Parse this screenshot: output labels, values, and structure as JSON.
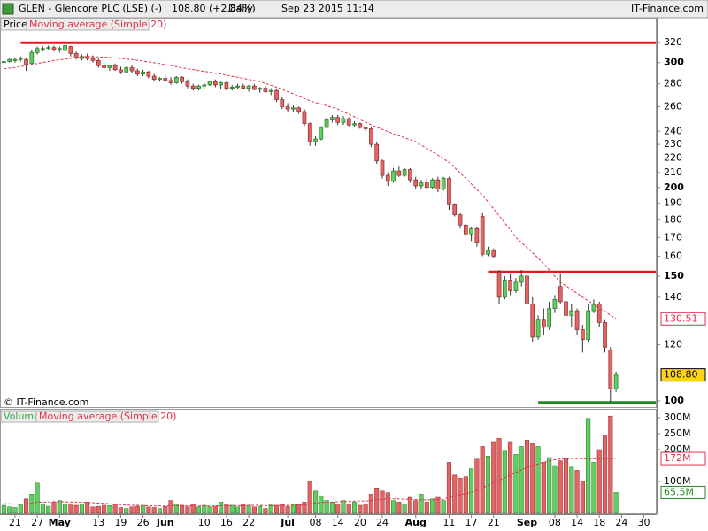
{
  "chart_data": {
    "type": "candlestick",
    "header": {
      "symbol": "GLEN - Glencore PLC (LSE) (-)",
      "quote": "108.80 (+2.84%)",
      "period": "Daily",
      "timestamp": "Sep 23 2015 11:14",
      "brand": "IT-Finance.com"
    },
    "copyright": "© IT-Finance.com",
    "categories": [
      null,
      null,
      "21",
      null,
      null,
      null,
      "27",
      null,
      null,
      null,
      "May",
      null,
      null,
      null,
      null,
      null,
      null,
      "13",
      null,
      null,
      null,
      "19",
      null,
      null,
      null,
      "26",
      null,
      null,
      null,
      "Jun",
      null,
      null,
      null,
      null,
      null,
      null,
      "10",
      null,
      null,
      null,
      "16",
      null,
      null,
      null,
      "22",
      null,
      null,
      null,
      null,
      null,
      null,
      "Jul",
      null,
      null,
      null,
      null,
      "08",
      null,
      null,
      null,
      "14",
      null,
      null,
      null,
      "20",
      null,
      null,
      null,
      "24",
      null,
      null,
      null,
      null,
      null,
      "Aug",
      null,
      null,
      null,
      null,
      null,
      "11",
      null,
      null,
      null,
      "17",
      null,
      null,
      null,
      "21",
      null,
      null,
      null,
      null,
      null,
      "Sep",
      null,
      null,
      null,
      null,
      "08",
      null,
      null,
      null,
      "14",
      null,
      null,
      null,
      "18",
      null,
      null,
      null,
      "24",
      null,
      null,
      null,
      "30"
    ],
    "price_panel": {
      "name": "Price",
      "up_color": "#5fcf5f",
      "down_color": "#e36464",
      "log_scale": true,
      "ylim": [
        98,
        347
      ],
      "yticks": [
        100,
        120,
        140,
        150,
        160,
        170,
        180,
        190,
        200,
        210,
        220,
        230,
        240,
        260,
        280,
        300,
        320
      ],
      "ohlc": [
        [
          300,
          302,
          298,
          301
        ],
        [
          301,
          304,
          300,
          303
        ],
        [
          302,
          305,
          300,
          303
        ],
        [
          303,
          306,
          301,
          304
        ],
        [
          303,
          305,
          292,
          298
        ],
        [
          299,
          312,
          298,
          310
        ],
        [
          310,
          316,
          308,
          314
        ],
        [
          313,
          316,
          311,
          314
        ],
        [
          314,
          317,
          312,
          315
        ],
        [
          315,
          317,
          311,
          313
        ],
        [
          313,
          316,
          310,
          314
        ],
        [
          312,
          320,
          311,
          317
        ],
        [
          316,
          317,
          306,
          309
        ],
        [
          309,
          311,
          303,
          305
        ],
        [
          304,
          308,
          302,
          306
        ],
        [
          306,
          309,
          302,
          304
        ],
        [
          304,
          307,
          300,
          302
        ],
        [
          302,
          304,
          295,
          297
        ],
        [
          297,
          300,
          293,
          295
        ],
        [
          295,
          298,
          292,
          297
        ],
        [
          297,
          299,
          292,
          293
        ],
        [
          293,
          296,
          289,
          291
        ],
        [
          291,
          296,
          290,
          295
        ],
        [
          295,
          297,
          290,
          292
        ],
        [
          292,
          294,
          287,
          289
        ],
        [
          289,
          293,
          287,
          291
        ],
        [
          291,
          292,
          285,
          287
        ],
        [
          287,
          289,
          282,
          284
        ],
        [
          284,
          286,
          282,
          285
        ],
        [
          285,
          288,
          282,
          283
        ],
        [
          283,
          286,
          279,
          281
        ],
        [
          281,
          287,
          280,
          286
        ],
        [
          286,
          287,
          280,
          282
        ],
        [
          282,
          284,
          276,
          278
        ],
        [
          278,
          280,
          274,
          276
        ],
        [
          276,
          279,
          274,
          278
        ],
        [
          278,
          281,
          276,
          279
        ],
        [
          279,
          283,
          278,
          282
        ],
        [
          282,
          284,
          277,
          279
        ],
        [
          279,
          282,
          275,
          281
        ],
        [
          281,
          282,
          274,
          276
        ],
        [
          276,
          279,
          274,
          277
        ],
        [
          277,
          280,
          275,
          278
        ],
        [
          278,
          280,
          275,
          276
        ],
        [
          276,
          279,
          273,
          278
        ],
        [
          278,
          280,
          274,
          275
        ],
        [
          275,
          277,
          272,
          276
        ],
        [
          276,
          278,
          272,
          273
        ],
        [
          273,
          276,
          270,
          274
        ],
        [
          274,
          275,
          264,
          266
        ],
        [
          266,
          268,
          258,
          260
        ],
        [
          260,
          263,
          256,
          258
        ],
        [
          258,
          261,
          255,
          259
        ],
        [
          259,
          260,
          254,
          256
        ],
        [
          256,
          258,
          244,
          246
        ],
        [
          246,
          247,
          229,
          232
        ],
        [
          232,
          236,
          229,
          234
        ],
        [
          234,
          244,
          233,
          243
        ],
        [
          243,
          251,
          242,
          249
        ],
        [
          249,
          253,
          247,
          251
        ],
        [
          251,
          253,
          245,
          247
        ],
        [
          247,
          252,
          245,
          250
        ],
        [
          250,
          251,
          244,
          245
        ],
        [
          245,
          248,
          243,
          246
        ],
        [
          246,
          247,
          242,
          243
        ],
        [
          243,
          244,
          240,
          242
        ],
        [
          242,
          243,
          228,
          230
        ],
        [
          230,
          232,
          216,
          218
        ],
        [
          218,
          219,
          206,
          208
        ],
        [
          208,
          210,
          201,
          204
        ],
        [
          204,
          213,
          203,
          211
        ],
        [
          211,
          214,
          207,
          208
        ],
        [
          208,
          213,
          207,
          212
        ],
        [
          212,
          213,
          203,
          205
        ],
        [
          205,
          207,
          199,
          201
        ],
        [
          201,
          205,
          199,
          203
        ],
        [
          203,
          206,
          199,
          200
        ],
        [
          200,
          206,
          199,
          205
        ],
        [
          205,
          207,
          197,
          199
        ],
        [
          199,
          207,
          198,
          206
        ],
        [
          206,
          207,
          186,
          189
        ],
        [
          189,
          190,
          182,
          183
        ],
        [
          183,
          184,
          175,
          177
        ],
        [
          177,
          178,
          170,
          172
        ],
        [
          172,
          176,
          168,
          175
        ],
        [
          175,
          176,
          165,
          167
        ],
        [
          182,
          184,
          160,
          161
        ],
        [
          161,
          165,
          160,
          163
        ],
        [
          163,
          164,
          159,
          160
        ],
        [
          152,
          153,
          137,
          140
        ],
        [
          140,
          150,
          139,
          148
        ],
        [
          148,
          151,
          141,
          143
        ],
        [
          143,
          149,
          142,
          147
        ],
        [
          147,
          153,
          145,
          150
        ],
        [
          150,
          151,
          135,
          137
        ],
        [
          137,
          140,
          121,
          123
        ],
        [
          123,
          132,
          122,
          130
        ],
        [
          130,
          135,
          124,
          127
        ],
        [
          127,
          138,
          126,
          135
        ],
        [
          135,
          141,
          133,
          139
        ],
        [
          145,
          151,
          137,
          138
        ],
        [
          138,
          141,
          130,
          132
        ],
        [
          132,
          137,
          127,
          134
        ],
        [
          134,
          135,
          124,
          126
        ],
        [
          126,
          128,
          117,
          122
        ],
        [
          122,
          137,
          121,
          134
        ],
        [
          134,
          139,
          133,
          137
        ],
        [
          137,
          138,
          127,
          129
        ],
        [
          129,
          130,
          117,
          119
        ],
        [
          118,
          119,
          99.5,
          104
        ],
        [
          104,
          110,
          103,
          108.8
        ],
        null,
        null,
        null,
        null,
        null
      ],
      "ma": {
        "name": "Moving average (Simple 20)",
        "color": "#e0304a",
        "values": [
          294,
          294.7,
          295.3,
          296,
          297,
          298,
          299,
          300,
          301,
          302,
          302.7,
          303.3,
          304,
          304.7,
          305.3,
          306,
          305.8,
          305.5,
          305.3,
          305,
          304.5,
          304,
          303.5,
          303,
          302.2,
          301.4,
          300.6,
          299.8,
          299,
          298,
          297,
          296,
          295,
          294,
          293.2,
          292.3,
          291.5,
          290.7,
          289.8,
          289,
          288,
          287,
          286,
          285,
          284,
          283,
          282,
          280.3,
          278.7,
          277,
          275,
          273,
          271,
          269,
          267,
          265,
          263.6,
          262.2,
          260.8,
          259.4,
          258,
          255.8,
          253.7,
          251.5,
          249.3,
          247.2,
          245,
          243.3,
          241.5,
          239.8,
          238,
          236.5,
          235,
          233.5,
          232,
          229.5,
          227,
          224.5,
          222,
          219.5,
          217,
          213.3,
          209.7,
          206,
          202.3,
          198.7,
          195,
          190.8,
          186.7,
          182.5,
          178.3,
          174.2,
          170,
          167.3,
          164.5,
          161.8,
          159,
          156,
          153,
          150,
          147,
          145.3,
          143.5,
          141.8,
          140,
          138.4,
          136.8,
          135.2,
          133.7,
          132.1,
          130.51,
          null,
          null,
          null,
          null,
          null
        ]
      },
      "markers": [
        {
          "value": 130.51,
          "label": "130.51",
          "color": "#e0304a",
          "background": "#ffffff"
        },
        {
          "value": 108.8,
          "label": "108.80",
          "color": "#000000",
          "background": "#ffd21f"
        }
      ],
      "lines": [
        {
          "value": 320,
          "from": 3,
          "color": "#e8191c"
        },
        {
          "value": 152,
          "from": 87,
          "color": "#e8191c"
        },
        {
          "value": 99.5,
          "from": 96,
          "color": "#1f8a1f"
        }
      ]
    },
    "volume_panel": {
      "name": "Volume",
      "ylim": [
        0,
        325
      ],
      "yticks": [
        {
          "value": 100,
          "label": "100M"
        },
        {
          "value": 200,
          "label": "200M"
        },
        {
          "value": 250,
          "label": "250M"
        },
        {
          "value": 300,
          "label": "300M"
        }
      ],
      "values": [
        25,
        20,
        18,
        28,
        45,
        60,
        95,
        30,
        22,
        35,
        40,
        28,
        30,
        25,
        30,
        35,
        20,
        22,
        25,
        24,
        30,
        18,
        15,
        20,
        22,
        25,
        20,
        18,
        15,
        22,
        40,
        30,
        25,
        20,
        28,
        20,
        25,
        20,
        22,
        35,
        30,
        25,
        20,
        30,
        25,
        20,
        22,
        15,
        30,
        25,
        28,
        22,
        30,
        28,
        35,
        100,
        70,
        55,
        40,
        35,
        30,
        40,
        30,
        35,
        25,
        30,
        60,
        80,
        70,
        65,
        40,
        35,
        30,
        50,
        40,
        60,
        35,
        45,
        50,
        40,
        160,
        120,
        110,
        115,
        140,
        170,
        210,
        180,
        225,
        235,
        195,
        225,
        185,
        210,
        230,
        220,
        210,
        160,
        175,
        150,
        165,
        170,
        145,
        135,
        100,
        298,
        160,
        200,
        245,
        305,
        65.5,
        null,
        null,
        null,
        null,
        null
      ],
      "ma": {
        "name": "Moving average (Simple 20)",
        "color": "#e0304a",
        "values": [
          30,
          30,
          29,
          29,
          30,
          32,
          35,
          35,
          35,
          36,
          36,
          36,
          35,
          35,
          35,
          34,
          33,
          32,
          31,
          30,
          28,
          27,
          26,
          25,
          25,
          24,
          24,
          23,
          23,
          23,
          24,
          24,
          24,
          23,
          23,
          23,
          23,
          23,
          23,
          24,
          24,
          24,
          24,
          24,
          25,
          25,
          25,
          24,
          24,
          24,
          25,
          25,
          25,
          25,
          26,
          30,
          32,
          34,
          35,
          35,
          36,
          37,
          37,
          38,
          38,
          38,
          40,
          42,
          44,
          45,
          45,
          45,
          44,
          44,
          43,
          42,
          42,
          42,
          43,
          44,
          50,
          54,
          58,
          62,
          66,
          72,
          80,
          88,
          96,
          104,
          112,
          120,
          128,
          136,
          144,
          150,
          155,
          160,
          164,
          168,
          170,
          171,
          172,
          172,
          171,
          170,
          171,
          172,
          172,
          172,
          172,
          null,
          null,
          null,
          null,
          null
        ]
      },
      "markers": [
        {
          "value": 172,
          "label": "172M",
          "color": "#e0304a",
          "background": "#ffffff"
        },
        {
          "value": 65.5,
          "label": "65.5M",
          "color": "#1f8a1f",
          "background": "#ffffff"
        }
      ]
    }
  }
}
